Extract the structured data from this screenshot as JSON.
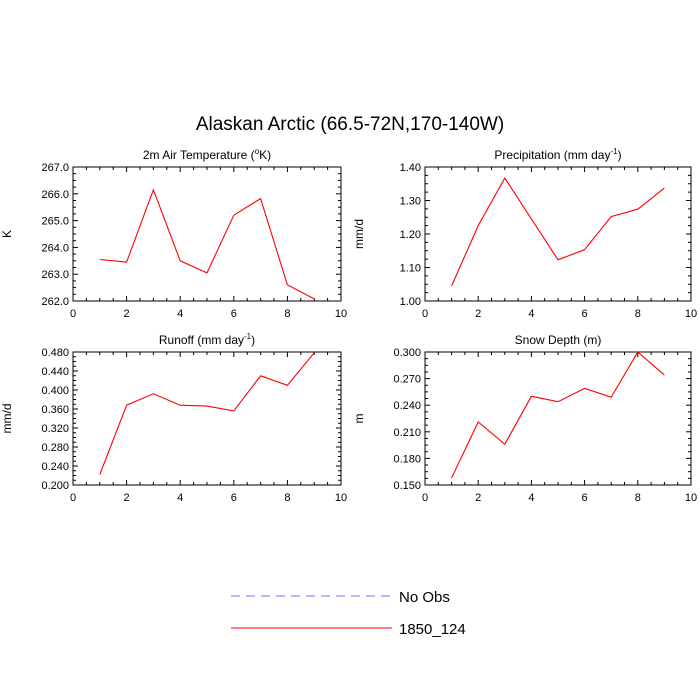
{
  "title": "Alaskan Arctic (66.5-72N,170-140W)",
  "chart_data": [
    {
      "type": "line",
      "title_main": "2m Air Temperature (",
      "title_sup": "o",
      "title_rest": "K)",
      "ylabel": "K",
      "xlim": [
        0,
        10
      ],
      "ylim": [
        262.0,
        267.0
      ],
      "xticks": [
        "0",
        "2",
        "4",
        "6",
        "8",
        "10"
      ],
      "yticks": [
        "262.0",
        "263.0",
        "264.0",
        "265.0",
        "266.0",
        "267.0"
      ],
      "x": [
        1,
        2,
        3,
        4,
        5,
        6,
        7,
        8,
        9
      ],
      "series": [
        {
          "name": "1850_124",
          "color": "#ff0000",
          "values": [
            263.55,
            263.45,
            266.15,
            263.5,
            263.05,
            265.2,
            265.82,
            262.6,
            262.08
          ]
        }
      ]
    },
    {
      "type": "line",
      "title_main": "Precipitation (mm day",
      "title_sup": "-1",
      "title_rest": ")",
      "ylabel": "mm/d",
      "xlim": [
        0,
        10
      ],
      "ylim": [
        1.0,
        1.4
      ],
      "xticks": [
        "0",
        "2",
        "4",
        "6",
        "8",
        "10"
      ],
      "yticks": [
        "1.00",
        "1.10",
        "1.20",
        "1.30",
        "1.40"
      ],
      "x": [
        1,
        2,
        3,
        4,
        5,
        6,
        7,
        8,
        9
      ],
      "series": [
        {
          "name": "1850_124",
          "color": "#ff0000",
          "values": [
            1.045,
            1.225,
            1.367,
            1.245,
            1.123,
            1.153,
            1.252,
            1.274,
            1.337
          ]
        }
      ]
    },
    {
      "type": "line",
      "title_main": "Runoff (mm day",
      "title_sup": "-1",
      "title_rest": ")",
      "ylabel": "mm/d",
      "xlim": [
        0,
        10
      ],
      "ylim": [
        0.2,
        0.48
      ],
      "xticks": [
        "0",
        "2",
        "4",
        "6",
        "8",
        "10"
      ],
      "yticks": [
        "0.200",
        "0.240",
        "0.280",
        "0.320",
        "0.360",
        "0.400",
        "0.440",
        "0.480"
      ],
      "x": [
        1,
        2,
        3,
        4,
        5,
        6,
        7,
        8,
        9
      ],
      "series": [
        {
          "name": "1850_124",
          "color": "#ff0000",
          "values": [
            0.222,
            0.368,
            0.392,
            0.368,
            0.366,
            0.356,
            0.43,
            0.41,
            0.478
          ]
        }
      ]
    },
    {
      "type": "line",
      "title_main": "Snow Depth (m)",
      "title_sup": "",
      "title_rest": "",
      "ylabel": "m",
      "xlim": [
        0,
        10
      ],
      "ylim": [
        0.15,
        0.3
      ],
      "xticks": [
        "0",
        "2",
        "4",
        "6",
        "8",
        "10"
      ],
      "yticks": [
        "0.150",
        "0.180",
        "0.210",
        "0.240",
        "0.270",
        "0.300"
      ],
      "x": [
        1,
        2,
        3,
        4,
        5,
        6,
        7,
        8,
        9
      ],
      "series": [
        {
          "name": "1850_124",
          "color": "#ff0000",
          "values": [
            0.158,
            0.221,
            0.196,
            0.25,
            0.244,
            0.259,
            0.249,
            0.3,
            0.274
          ]
        }
      ]
    }
  ],
  "legend": [
    {
      "label": "No Obs",
      "color": "#6f6fff",
      "style": "dashed"
    },
    {
      "label": "1850_124",
      "color": "#ff0000",
      "style": "solid"
    }
  ]
}
